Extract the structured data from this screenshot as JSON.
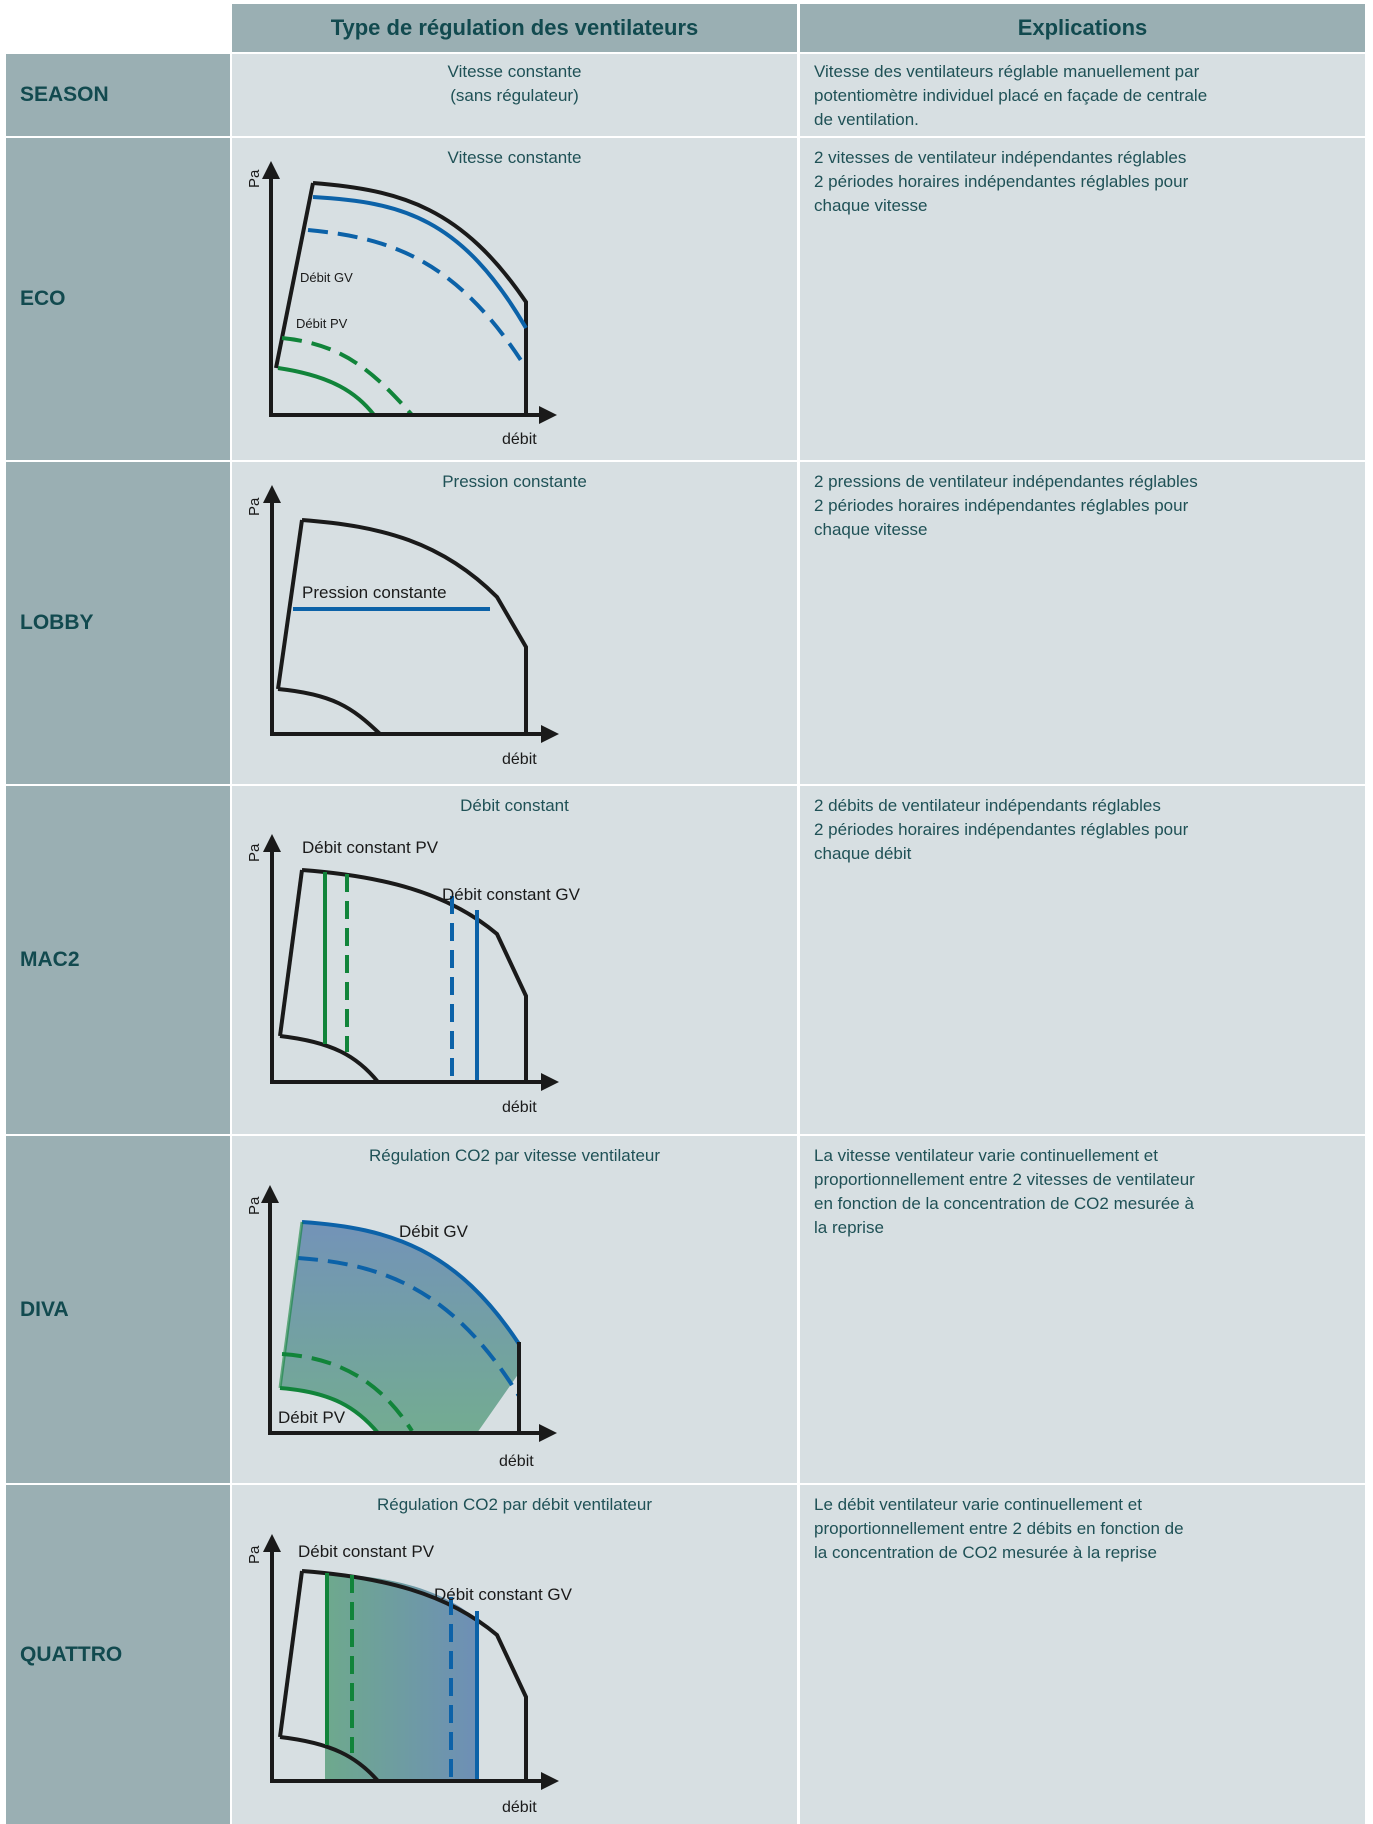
{
  "header": {
    "type_col": "Type de régulation des ventilateurs",
    "expl_col": "Explications"
  },
  "axes": {
    "y": "Pa",
    "x": "débit"
  },
  "rows": [
    {
      "label": "SEASON",
      "type_line1": "Vitesse constante",
      "type_line2": "(sans régulateur)",
      "expl": [
        "Vitesse des ventilateurs réglable manuellement par",
        "potentiomètre individuel placé en façade de centrale",
        "de ventilation."
      ]
    },
    {
      "label": "ECO",
      "type": "Vitesse constante",
      "annotations": [
        "Débit GV",
        "Débit PV"
      ],
      "expl": [
        "2 vitesses de ventilateur indépendantes réglables",
        "2 périodes horaires indépendantes réglables pour",
        "chaque vitesse"
      ]
    },
    {
      "label": "LOBBY",
      "type": "Pression constante",
      "annotations": [
        "Pression constante"
      ],
      "expl": [
        "2 pressions de ventilateur indépendantes réglables",
        "2 périodes horaires indépendantes réglables pour",
        "chaque vitesse"
      ]
    },
    {
      "label": "MAC2",
      "type": "Débit constant",
      "annotations": [
        "Débit constant PV",
        "Débit constant GV"
      ],
      "expl": [
        "2 débits de ventilateur indépendants réglables",
        "2 périodes horaires indépendantes réglables pour",
        "chaque débit"
      ]
    },
    {
      "label": "DIVA",
      "type": "Régulation CO2 par vitesse ventilateur",
      "annotations": [
        "Débit GV",
        "Débit PV"
      ],
      "expl": [
        "La vitesse ventilateur varie continuellement et",
        "proportionnellement entre 2 vitesses de ventilateur",
        "en fonction de la concentration de CO2 mesurée à",
        "la reprise"
      ]
    },
    {
      "label": "QUATTRO",
      "type": "Régulation CO2 par débit ventilateur",
      "annotations": [
        "Débit constant PV",
        "Débit constant GV"
      ],
      "expl": [
        "Le débit ventilateur varie continuellement et",
        "proportionnellement entre 2 débits en fonction de",
        "la concentration de CO2 mesurée à la reprise"
      ]
    }
  ],
  "colors": {
    "label_bg": "#9aafb3",
    "cell_bg": "#d7dfe2",
    "text": "#1f5156",
    "blue": "#0c62a8",
    "green": "#11843a",
    "black": "#1a1a1a"
  }
}
